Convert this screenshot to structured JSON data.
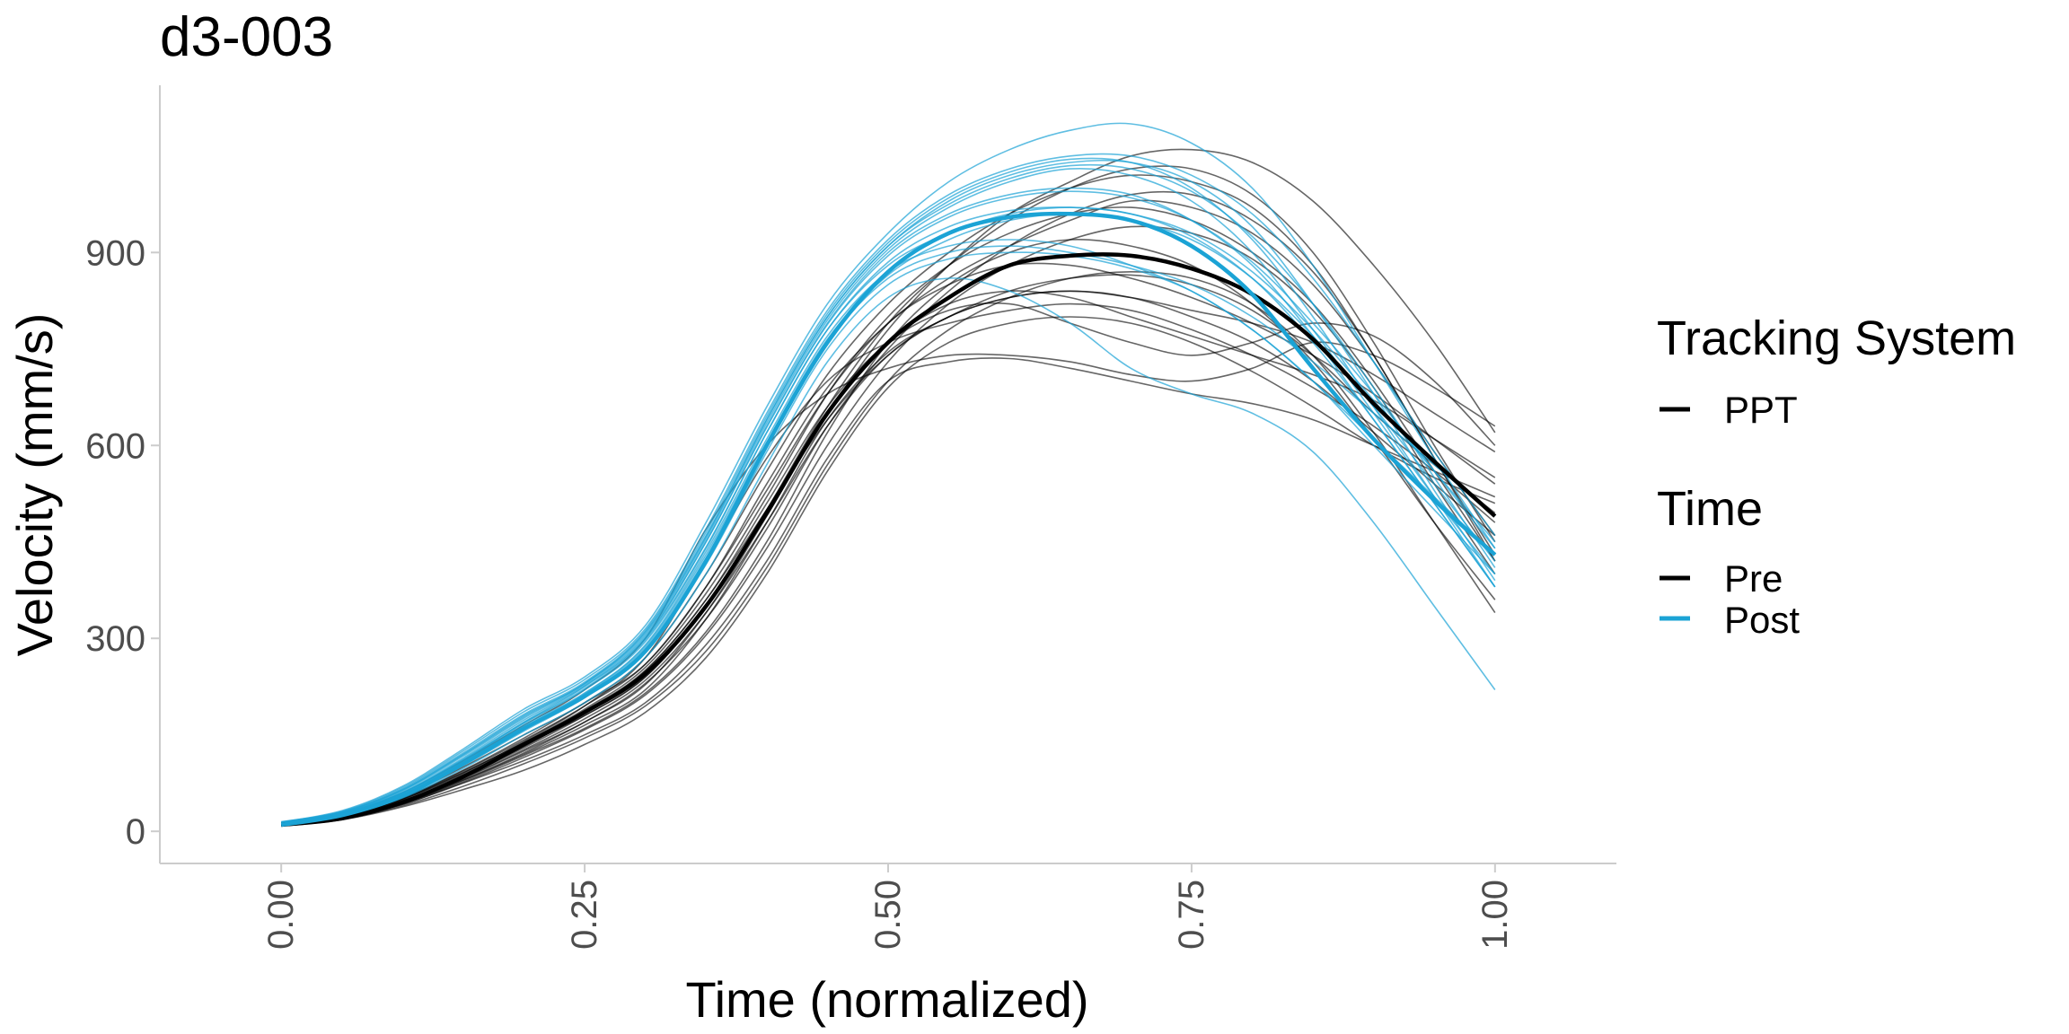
{
  "chart_data": {
    "type": "line",
    "title": "d3-003",
    "xlabel": "Time (normalized)",
    "ylabel": "Velocity (mm/s)",
    "xlim": [
      -0.1,
      1.1
    ],
    "ylim": [
      -50,
      1160
    ],
    "x_ticks": [
      0,
      0.25,
      0.5,
      0.75,
      1
    ],
    "x_tick_labels": [
      "0.00",
      "0.25",
      "0.50",
      "0.75",
      "1.00"
    ],
    "y_ticks": [
      0,
      300,
      600,
      900
    ],
    "y_tick_labels": [
      "0",
      "300",
      "600",
      "900"
    ],
    "grid": false,
    "x_tick_label_rotation": "vertical",
    "colors": {
      "Pre": "#000000",
      "Post": "#1ba3d5"
    },
    "legend": {
      "placement": "right",
      "groups": [
        {
          "title": "Tracking System",
          "entries": [
            {
              "label": "PPT",
              "color": "#000000"
            }
          ]
        },
        {
          "title": "Time",
          "entries": [
            {
              "label": "Pre",
              "color": "#000000"
            },
            {
              "label": "Post",
              "color": "#1ba3d5"
            }
          ]
        }
      ]
    },
    "x": [
      0,
      0.05,
      0.1,
      0.15,
      0.2,
      0.25,
      0.3,
      0.35,
      0.4,
      0.45,
      0.5,
      0.55,
      0.6,
      0.65,
      0.7,
      0.75,
      0.8,
      0.85,
      0.9,
      0.95,
      1.0
    ],
    "series": [
      {
        "name": "Pre",
        "role": "mean",
        "values": [
          10,
          20,
          45,
          85,
          135,
          185,
          245,
          350,
          495,
          650,
          760,
          830,
          880,
          895,
          895,
          875,
          835,
          765,
          665,
          575,
          490
        ]
      },
      {
        "name": "Post",
        "role": "mean",
        "values": [
          10,
          25,
          55,
          105,
          160,
          210,
          280,
          420,
          600,
          760,
          870,
          930,
          955,
          960,
          950,
          910,
          835,
          720,
          610,
          515,
          430
        ]
      },
      {
        "name": "Pre",
        "role": "trial",
        "values": [
          12,
          22,
          48,
          80,
          120,
          165,
          220,
          330,
          480,
          640,
          745,
          800,
          840,
          860,
          865,
          850,
          810,
          740,
          650,
          570,
          495
        ]
      },
      {
        "name": "Pre",
        "role": "trial",
        "values": [
          8,
          18,
          38,
          65,
          95,
          135,
          185,
          270,
          400,
          560,
          690,
          760,
          790,
          800,
          790,
          760,
          715,
          660,
          600,
          550,
          510
        ]
      },
      {
        "name": "Pre",
        "role": "trial",
        "values": [
          10,
          25,
          55,
          100,
          150,
          200,
          270,
          400,
          560,
          710,
          820,
          900,
          960,
          1000,
          1020,
          1010,
          970,
          880,
          740,
          580,
          420
        ]
      },
      {
        "name": "Pre",
        "role": "trial",
        "values": [
          9,
          20,
          42,
          75,
          110,
          150,
          200,
          290,
          420,
          580,
          700,
          730,
          735,
          720,
          700,
          680,
          665,
          640,
          600,
          560,
          520
        ]
      },
      {
        "name": "Pre",
        "role": "trial",
        "values": [
          11,
          24,
          50,
          90,
          140,
          195,
          270,
          420,
          580,
          700,
          760,
          790,
          810,
          820,
          810,
          780,
          740,
          690,
          630,
          560,
          480
        ]
      },
      {
        "name": "Pre",
        "role": "trial",
        "values": [
          10,
          21,
          45,
          82,
          125,
          170,
          230,
          330,
          470,
          630,
          750,
          840,
          910,
          960,
          990,
          990,
          950,
          870,
          740,
          580,
          430
        ]
      },
      {
        "name": "Pre",
        "role": "trial",
        "values": [
          12,
          26,
          60,
          110,
          165,
          220,
          300,
          470,
          600,
          680,
          720,
          740,
          740,
          730,
          710,
          700,
          720,
          760,
          740,
          690,
          630
        ]
      },
      {
        "name": "Pre",
        "role": "trial",
        "values": [
          9,
          19,
          40,
          70,
          105,
          145,
          195,
          280,
          410,
          570,
          700,
          780,
          830,
          860,
          870,
          860,
          820,
          740,
          620,
          480,
          340
        ]
      },
      {
        "name": "Pre",
        "role": "trial",
        "values": [
          10,
          23,
          52,
          95,
          145,
          200,
          260,
          380,
          540,
          690,
          790,
          860,
          910,
          950,
          980,
          970,
          930,
          850,
          730,
          590,
          460
        ]
      },
      {
        "name": "Pre",
        "role": "trial",
        "values": [
          11,
          22,
          46,
          85,
          130,
          180,
          240,
          350,
          500,
          660,
          790,
          880,
          950,
          1000,
          1030,
          1030,
          990,
          900,
          760,
          600,
          450
        ]
      },
      {
        "name": "Pre",
        "role": "trial",
        "values": [
          10,
          20,
          44,
          78,
          118,
          160,
          215,
          310,
          450,
          620,
          760,
          850,
          900,
          920,
          910,
          880,
          820,
          730,
          610,
          480,
          360
        ]
      },
      {
        "name": "Pre",
        "role": "trial",
        "values": [
          12,
          24,
          50,
          92,
          138,
          190,
          255,
          370,
          520,
          680,
          800,
          880,
          930,
          960,
          970,
          950,
          900,
          820,
          700,
          560,
          420
        ]
      },
      {
        "name": "Pre",
        "role": "trial",
        "values": [
          9,
          21,
          43,
          80,
          122,
          170,
          228,
          340,
          490,
          650,
          760,
          820,
          840,
          830,
          800,
          770,
          740,
          710,
          670,
          610,
          550
        ]
      },
      {
        "name": "Pre",
        "role": "trial",
        "values": [
          10,
          22,
          47,
          86,
          132,
          185,
          250,
          360,
          510,
          660,
          760,
          810,
          820,
          790,
          760,
          740,
          760,
          790,
          770,
          700,
          600
        ]
      },
      {
        "name": "Pre",
        "role": "trial",
        "values": [
          11,
          23,
          49,
          88,
          135,
          180,
          240,
          350,
          500,
          650,
          780,
          880,
          960,
          1010,
          1050,
          1060,
          1040,
          980,
          880,
          760,
          620
        ]
      },
      {
        "name": "Pre",
        "role": "trial",
        "values": [
          10,
          21,
          45,
          83,
          127,
          175,
          235,
          340,
          480,
          630,
          740,
          800,
          830,
          840,
          830,
          800,
          760,
          700,
          620,
          540,
          460
        ]
      },
      {
        "name": "Pre",
        "role": "trial",
        "values": [
          12,
          25,
          52,
          94,
          142,
          195,
          260,
          380,
          530,
          680,
          790,
          850,
          880,
          880,
          860,
          830,
          790,
          740,
          680,
          610,
          540
        ]
      },
      {
        "name": "Pre",
        "role": "trial",
        "values": [
          9,
          20,
          42,
          76,
          115,
          158,
          212,
          305,
          440,
          600,
          730,
          820,
          880,
          920,
          940,
          930,
          890,
          810,
          690,
          540,
          400
        ]
      },
      {
        "name": "Pre",
        "role": "trial",
        "values": [
          11,
          24,
          51,
          91,
          138,
          188,
          250,
          360,
          500,
          640,
          740,
          800,
          830,
          840,
          830,
          810,
          790,
          760,
          710,
          650,
          590
        ]
      },
      {
        "name": "Post",
        "role": "trial",
        "values": [
          15,
          30,
          65,
          120,
          180,
          230,
          310,
          460,
          640,
          800,
          910,
          980,
          1020,
          1040,
          1040,
          1010,
          940,
          820,
          680,
          530,
          390
        ]
      },
      {
        "name": "Post",
        "role": "trial",
        "values": [
          12,
          28,
          60,
          112,
          170,
          225,
          300,
          450,
          630,
          790,
          900,
          960,
          990,
          1000,
          990,
          950,
          880,
          770,
          640,
          510,
          380
        ]
      },
      {
        "name": "Post",
        "role": "trial",
        "values": [
          10,
          26,
          58,
          108,
          165,
          215,
          290,
          435,
          610,
          770,
          870,
          910,
          920,
          910,
          880,
          840,
          780,
          700,
          610,
          520,
          430
        ]
      },
      {
        "name": "Post",
        "role": "trial",
        "values": [
          14,
          32,
          70,
          128,
          190,
          240,
          320,
          480,
          660,
          820,
          930,
          1010,
          1060,
          1090,
          1100,
          1070,
          1000,
          880,
          730,
          580,
          440
        ]
      },
      {
        "name": "Post",
        "role": "trial",
        "values": [
          9,
          24,
          52,
          98,
          150,
          200,
          270,
          400,
          570,
          730,
          830,
          860,
          840,
          790,
          720,
          680,
          650,
          590,
          480,
          350,
          220
        ]
      },
      {
        "name": "Post",
        "role": "trial",
        "values": [
          11,
          27,
          59,
          110,
          168,
          220,
          295,
          440,
          620,
          780,
          880,
          930,
          960,
          970,
          960,
          930,
          870,
          780,
          670,
          560,
          450
        ]
      },
      {
        "name": "Post",
        "role": "trial",
        "values": [
          13,
          29,
          63,
          117,
          176,
          228,
          305,
          455,
          635,
          795,
          905,
          970,
          1010,
          1030,
          1020,
          980,
          900,
          780,
          650,
          520,
          400
        ]
      },
      {
        "name": "Post",
        "role": "trial",
        "values": [
          10,
          25,
          55,
          104,
          160,
          212,
          285,
          425,
          600,
          760,
          860,
          900,
          910,
          900,
          880,
          850,
          800,
          730,
          650,
          570,
          490
        ]
      },
      {
        "name": "Post",
        "role": "trial",
        "values": [
          12,
          30,
          66,
          122,
          182,
          232,
          312,
          465,
          645,
          805,
          915,
          985,
          1025,
          1045,
          1040,
          1000,
          920,
          800,
          660,
          520,
          380
        ]
      },
      {
        "name": "Post",
        "role": "trial",
        "values": [
          14,
          31,
          68,
          125,
          186,
          236,
          315,
          470,
          650,
          810,
          920,
          990,
          1030,
          1050,
          1050,
          1020,
          960,
          860,
          730,
          590,
          460
        ]
      },
      {
        "name": "Post",
        "role": "trial",
        "values": [
          11,
          26,
          57,
          106,
          162,
          214,
          288,
          430,
          605,
          765,
          865,
          920,
          950,
          960,
          950,
          920,
          860,
          770,
          660,
          540,
          420
        ]
      },
      {
        "name": "Post",
        "role": "trial",
        "values": [
          13,
          28,
          61,
          114,
          173,
          226,
          302,
          450,
          628,
          788,
          895,
          955,
          985,
          995,
          985,
          950,
          885,
          790,
          680,
          560,
          440
        ]
      },
      {
        "name": "Post",
        "role": "trial",
        "values": [
          10,
          25,
          54,
          102,
          156,
          208,
          280,
          415,
          590,
          750,
          850,
          890,
          900,
          895,
          875,
          840,
          780,
          700,
          600,
          500,
          400
        ]
      },
      {
        "name": "Post",
        "role": "trial",
        "values": [
          12,
          29,
          64,
          119,
          178,
          230,
          308,
          458,
          640,
          800,
          910,
          975,
          1015,
          1035,
          1030,
          995,
          925,
          820,
          690,
          550,
          410
        ]
      },
      {
        "name": "Post",
        "role": "trial",
        "values": [
          11,
          27,
          60,
          111,
          169,
          222,
          298,
          442,
          620,
          780,
          885,
          940,
          965,
          970,
          960,
          925,
          860,
          760,
          640,
          510,
          380
        ]
      }
    ]
  }
}
